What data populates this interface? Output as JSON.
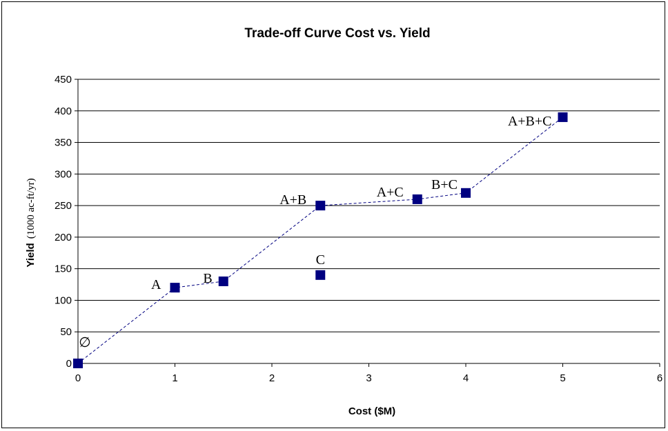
{
  "chart_data": {
    "type": "scatter",
    "title": "Trade-off Curve Cost vs. Yield",
    "xlabel": "Cost ($M)",
    "ylabel": "Yield",
    "ylabel_unit": "(1000 ac-ft/yr)",
    "xlim": [
      0,
      6
    ],
    "ylim": [
      0,
      450
    ],
    "x_ticks": [
      0,
      1,
      2,
      3,
      4,
      5,
      6
    ],
    "y_ticks": [
      0,
      50,
      100,
      150,
      200,
      250,
      300,
      350,
      400,
      450
    ],
    "grid": "horizontal",
    "marker_color": "#000080",
    "line_color": "#000080",
    "points": [
      {
        "label": "∅",
        "x": 0,
        "y": 0
      },
      {
        "label": "A",
        "x": 1,
        "y": 120
      },
      {
        "label": "B",
        "x": 1.5,
        "y": 130
      },
      {
        "label": "C",
        "x": 2.5,
        "y": 140
      },
      {
        "label": "A+B",
        "x": 2.5,
        "y": 250
      },
      {
        "label": "A+C",
        "x": 3.5,
        "y": 260
      },
      {
        "label": "B+C",
        "x": 4,
        "y": 270
      },
      {
        "label": "A+B+C",
        "x": 5,
        "y": 390
      }
    ],
    "tradeoff_curve": [
      {
        "x": 0,
        "y": 0
      },
      {
        "x": 1,
        "y": 120
      },
      {
        "x": 1.5,
        "y": 130
      },
      {
        "x": 2.5,
        "y": 250
      },
      {
        "x": 3.5,
        "y": 260
      },
      {
        "x": 4,
        "y": 270
      },
      {
        "x": 5,
        "y": 390
      }
    ]
  }
}
